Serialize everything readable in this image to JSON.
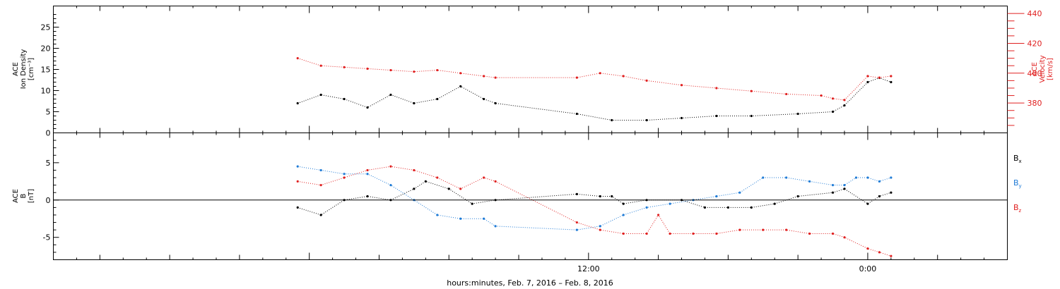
{
  "colors": {
    "black": "#000000",
    "blue": "#1f7bd6",
    "red": "#e02020",
    "axis": "#000000"
  },
  "chart_data": [
    {
      "type": "scatter",
      "panel": "top",
      "ylabel_lines": [
        "ACE",
        "Ion Density",
        "[cm⁻³]"
      ],
      "ylim": [
        0,
        30
      ],
      "yticks": [
        0,
        5,
        10,
        15,
        20,
        25
      ],
      "right_ylabel_lines": [
        "ACE",
        "Velocity",
        "[km/s]"
      ],
      "right_ylim": [
        360,
        445
      ],
      "right_yticks": [
        380,
        400,
        420,
        440
      ],
      "grid": false,
      "x_unit": "hours since 00:00 Feb 7, 2016",
      "series": [
        {
          "color": "black",
          "axis": "left",
          "points": [
            [
              -0.5,
              7
            ],
            [
              0.5,
              9
            ],
            [
              1.5,
              8
            ],
            [
              2.5,
              6
            ],
            [
              3.5,
              9
            ],
            [
              4.5,
              7
            ],
            [
              5.5,
              8
            ],
            [
              6.5,
              11
            ],
            [
              7.5,
              8
            ],
            [
              8,
              7
            ],
            [
              11.5,
              4.5
            ],
            [
              13,
              3
            ],
            [
              14.5,
              3
            ],
            [
              16,
              3.5
            ],
            [
              17.5,
              4
            ],
            [
              19,
              4
            ],
            [
              21,
              4.5
            ],
            [
              22.5,
              5
            ],
            [
              23,
              6.5
            ],
            [
              24,
              12
            ],
            [
              24.5,
              13
            ],
            [
              25,
              12
            ]
          ]
        },
        {
          "color": "red",
          "axis": "right",
          "points": [
            [
              -0.5,
              410
            ],
            [
              0.5,
              405
            ],
            [
              1.5,
              404
            ],
            [
              2.5,
              403
            ],
            [
              3.5,
              402
            ],
            [
              4.5,
              401
            ],
            [
              5.5,
              402
            ],
            [
              6.5,
              400
            ],
            [
              7.5,
              398
            ],
            [
              8,
              397
            ],
            [
              11.5,
              397
            ],
            [
              12.5,
              400
            ],
            [
              13.5,
              398
            ],
            [
              14.5,
              395
            ],
            [
              16,
              392
            ],
            [
              17.5,
              390
            ],
            [
              19,
              388
            ],
            [
              20.5,
              386
            ],
            [
              22,
              385
            ],
            [
              22.5,
              383
            ],
            [
              23,
              382
            ],
            [
              24,
              398
            ],
            [
              24.5,
              397
            ],
            [
              25,
              398
            ]
          ]
        }
      ]
    },
    {
      "type": "scatter",
      "panel": "bottom",
      "ylabel_lines": [
        "ACE",
        "B",
        "[nT]"
      ],
      "ylim": [
        -8,
        9
      ],
      "yticks": [
        -5,
        0,
        5
      ],
      "zero_line": true,
      "legend_position": "right",
      "legend": [
        {
          "label": "B",
          "sub": "x",
          "color": "black"
        },
        {
          "label": "B",
          "sub": "y",
          "color": "blue"
        },
        {
          "label": "B",
          "sub": "z",
          "color": "red"
        }
      ],
      "xticks": [
        {
          "value": 12,
          "label": "12:00"
        },
        {
          "value": 24,
          "label": "0:00"
        }
      ],
      "xlim": [
        -11,
        30
      ],
      "xlabel": "hours:minutes, Feb.  7, 2016 – Feb.  8, 2016",
      "series": [
        {
          "label": "B",
          "sub": "x",
          "color": "black",
          "points": [
            [
              -0.5,
              -1
            ],
            [
              0.5,
              -2
            ],
            [
              1.5,
              0
            ],
            [
              2.5,
              0.5
            ],
            [
              3.5,
              0
            ],
            [
              4.5,
              1.5
            ],
            [
              5,
              2.5
            ],
            [
              6,
              1.5
            ],
            [
              7,
              -0.5
            ],
            [
              8,
              0
            ],
            [
              11.5,
              0.8
            ],
            [
              12.5,
              0.5
            ],
            [
              13,
              0.5
            ],
            [
              13.5,
              -0.5
            ],
            [
              14.5,
              0
            ],
            [
              16,
              0
            ],
            [
              17,
              -1
            ],
            [
              18,
              -1
            ],
            [
              19,
              -1
            ],
            [
              20,
              -0.5
            ],
            [
              21,
              0.5
            ],
            [
              22.5,
              1
            ],
            [
              23,
              1.5
            ],
            [
              24,
              -0.5
            ],
            [
              24.5,
              0.5
            ],
            [
              25,
              1
            ]
          ]
        },
        {
          "label": "B",
          "sub": "y",
          "color": "blue",
          "points": [
            [
              -0.5,
              4.5
            ],
            [
              0.5,
              4
            ],
            [
              1.5,
              3.5
            ],
            [
              2.5,
              3.5
            ],
            [
              3.5,
              2
            ],
            [
              4.5,
              0
            ],
            [
              5.5,
              -2
            ],
            [
              6.5,
              -2.5
            ],
            [
              7.5,
              -2.5
            ],
            [
              8,
              -3.5
            ],
            [
              11.5,
              -4
            ],
            [
              12.5,
              -3.5
            ],
            [
              13.5,
              -2
            ],
            [
              14.5,
              -1
            ],
            [
              15.5,
              -0.5
            ],
            [
              16.5,
              0
            ],
            [
              17.5,
              0.5
            ],
            [
              18.5,
              1
            ],
            [
              19.5,
              3
            ],
            [
              20.5,
              3
            ],
            [
              21.5,
              2.5
            ],
            [
              22.5,
              2
            ],
            [
              23,
              2
            ],
            [
              23.5,
              3
            ],
            [
              24,
              3
            ],
            [
              24.5,
              2.5
            ],
            [
              25,
              3
            ]
          ]
        },
        {
          "label": "B",
          "sub": "z",
          "color": "red",
          "points": [
            [
              -0.5,
              2.5
            ],
            [
              0.5,
              2
            ],
            [
              1.5,
              3
            ],
            [
              2.5,
              4
            ],
            [
              3.5,
              4.5
            ],
            [
              4.5,
              4
            ],
            [
              5.5,
              3
            ],
            [
              6.5,
              1.5
            ],
            [
              7.5,
              3
            ],
            [
              8,
              2.5
            ],
            [
              11.5,
              -3
            ],
            [
              12.5,
              -4
            ],
            [
              13.5,
              -4.5
            ],
            [
              14.5,
              -4.5
            ],
            [
              15,
              -2
            ],
            [
              15.5,
              -4.5
            ],
            [
              16.5,
              -4.5
            ],
            [
              17.5,
              -4.5
            ],
            [
              18.5,
              -4
            ],
            [
              19.5,
              -4
            ],
            [
              20.5,
              -4
            ],
            [
              21.5,
              -4.5
            ],
            [
              22.5,
              -4.5
            ],
            [
              23,
              -5
            ],
            [
              24,
              -6.5
            ],
            [
              24.5,
              -7
            ],
            [
              25,
              -7.5
            ]
          ]
        }
      ]
    }
  ]
}
